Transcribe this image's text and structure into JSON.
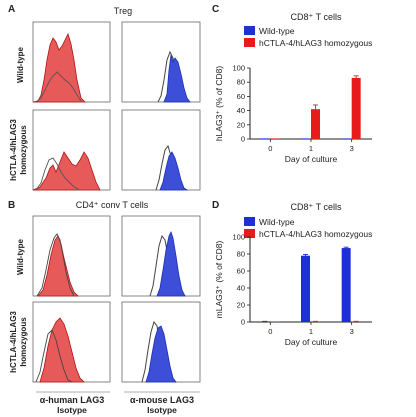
{
  "figure": {
    "panel_letters": [
      "A",
      "B",
      "C",
      "D"
    ],
    "panel_a_title": "Treg",
    "panel_b_title": "CD4⁺ conv T cells",
    "row_labels": {
      "wt": "Wild-type",
      "hz_line1": "hCTLA-4/hLAG3",
      "hz_line2": "homozygous"
    },
    "x_labels": {
      "human": "α-human LAG3",
      "mouse": "α-mouse LAG3",
      "isotype": "Isotype"
    },
    "colors": {
      "wildtype": "#1f2fd6",
      "homozygous": "#e81b1b",
      "human_hist": "#e65a5a",
      "mouse_hist": "#3d4fd8",
      "human_text": "#d62020",
      "mouse_text": "#2b3fcf",
      "isotype_text": "#888888"
    }
  },
  "chart_data": [
    {
      "type": "bar",
      "panel": "C",
      "title": "CD8⁺ T cells",
      "xlabel": "Day of culture",
      "ylabel": "hLAG3⁺ (% of CD8)",
      "categories": [
        "0",
        "1",
        "3"
      ],
      "ylim": [
        0,
        100
      ],
      "yticks": [
        "0",
        "20",
        "40",
        "60",
        "80",
        "100"
      ],
      "legend_position": "top-left",
      "series": [
        {
          "name": "Wild-type",
          "values": [
            0,
            0,
            0
          ],
          "errors": [
            0,
            0,
            0
          ]
        },
        {
          "name": "hCTLA-4/hLAG3 homozygous",
          "values": [
            0,
            42,
            86
          ],
          "errors": [
            0,
            6,
            3
          ]
        }
      ]
    },
    {
      "type": "bar",
      "panel": "D",
      "title": "CD8⁺ T cells",
      "xlabel": "Day of culture",
      "ylabel": "mLAG3⁺ (% of CD8)",
      "categories": [
        "0",
        "1",
        "3"
      ],
      "ylim": [
        0,
        100
      ],
      "yticks": [
        "0",
        "20",
        "40",
        "60",
        "80",
        "100"
      ],
      "legend_position": "top-left",
      "series": [
        {
          "name": "Wild-type",
          "values": [
            0.5,
            78,
            87
          ],
          "errors": [
            0.3,
            1.5,
            1
          ]
        },
        {
          "name": "hCTLA-4/hLAG3 homozygous",
          "values": [
            0,
            0.5,
            0.5
          ],
          "errors": [
            0,
            0.3,
            0.3
          ]
        }
      ]
    }
  ]
}
